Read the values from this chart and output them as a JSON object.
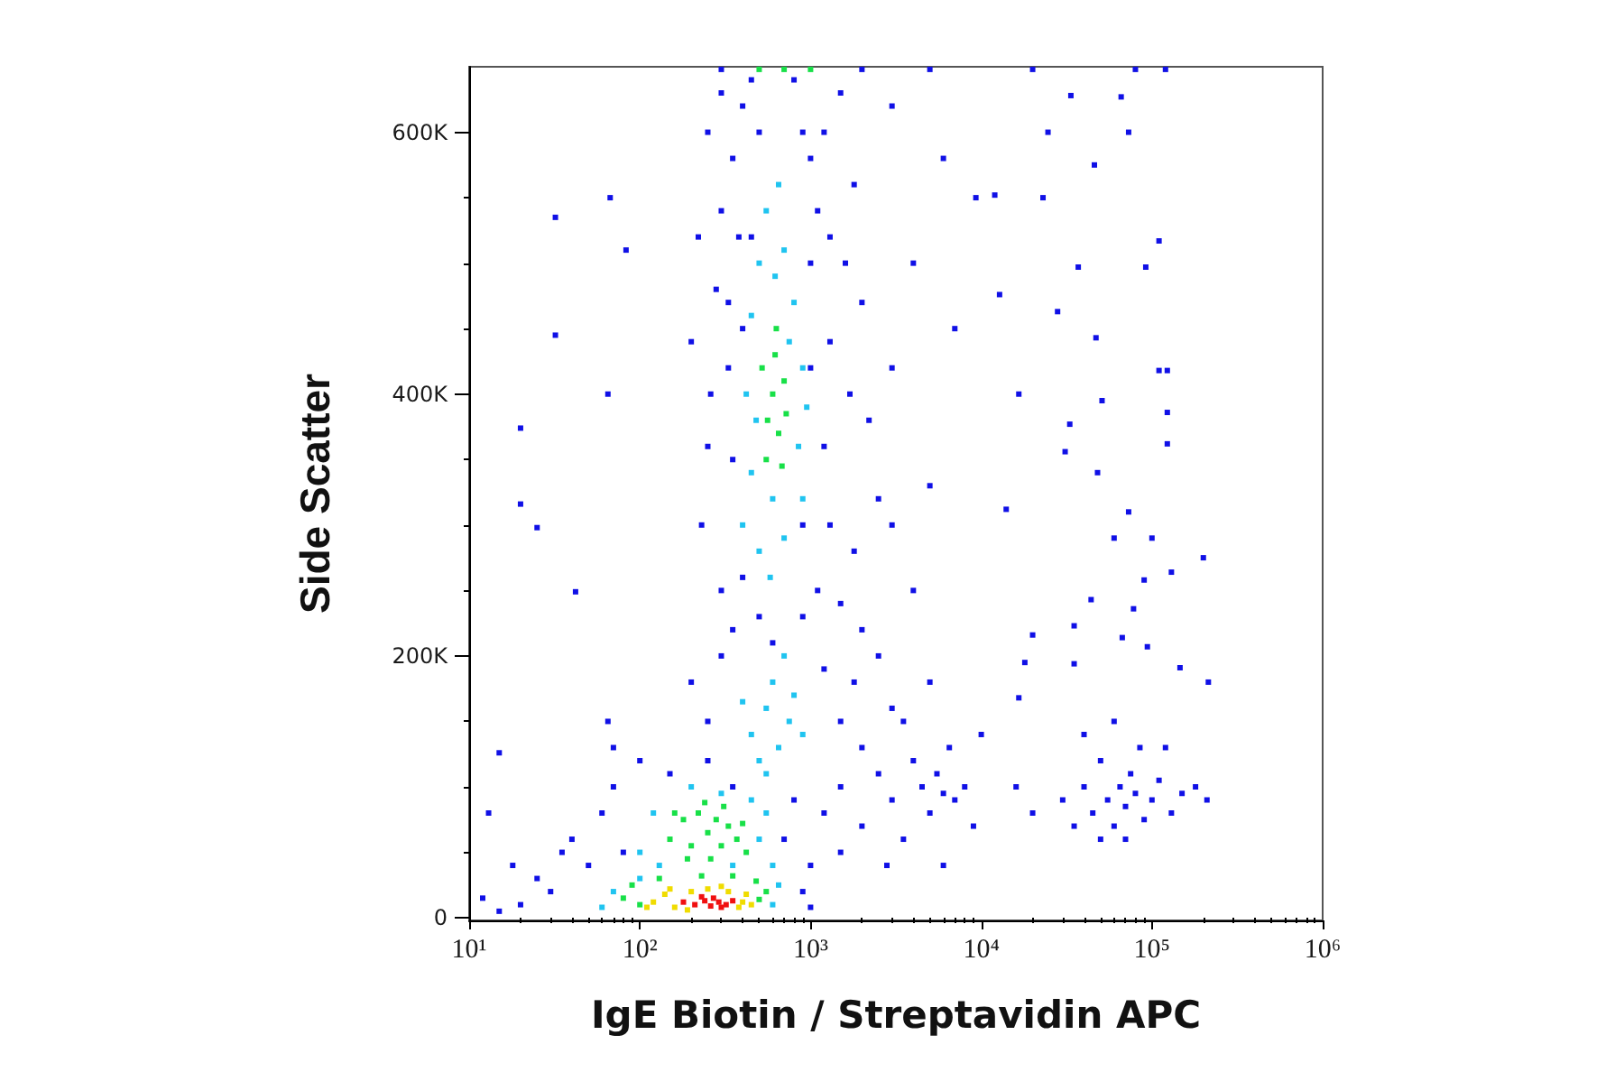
{
  "chart_data": {
    "type": "scatter",
    "xlabel": "IgE Biotin / Streptavidin APC",
    "ylabel": "Side Scatter",
    "log": "x",
    "marker": "square",
    "xlim": [
      10,
      1000000
    ],
    "ylim": [
      -2000,
      650000
    ],
    "xticks": [
      {
        "value": 10,
        "label": "10¹"
      },
      {
        "value": 20,
        "label": null
      },
      {
        "value": 30,
        "label": null
      },
      {
        "value": 40,
        "label": null
      },
      {
        "value": 50,
        "label": null
      },
      {
        "value": 60,
        "label": null
      },
      {
        "value": 70,
        "label": null
      },
      {
        "value": 80,
        "label": null
      },
      {
        "value": 90,
        "label": null
      },
      {
        "value": 100,
        "label": "10²"
      },
      {
        "value": 200,
        "label": null
      },
      {
        "value": 300,
        "label": null
      },
      {
        "value": 400,
        "label": null
      },
      {
        "value": 500,
        "label": null
      },
      {
        "value": 600,
        "label": null
      },
      {
        "value": 700,
        "label": null
      },
      {
        "value": 800,
        "label": null
      },
      {
        "value": 900,
        "label": null
      },
      {
        "value": 1000,
        "label": "10³"
      },
      {
        "value": 2000,
        "label": null
      },
      {
        "value": 3000,
        "label": null
      },
      {
        "value": 4000,
        "label": null
      },
      {
        "value": 5000,
        "label": null
      },
      {
        "value": 6000,
        "label": null
      },
      {
        "value": 7000,
        "label": null
      },
      {
        "value": 8000,
        "label": null
      },
      {
        "value": 9000,
        "label": null
      },
      {
        "value": 10000,
        "label": "10⁴"
      },
      {
        "value": 20000,
        "label": null
      },
      {
        "value": 30000,
        "label": null
      },
      {
        "value": 40000,
        "label": null
      },
      {
        "value": 50000,
        "label": null
      },
      {
        "value": 60000,
        "label": null
      },
      {
        "value": 70000,
        "label": null
      },
      {
        "value": 80000,
        "label": null
      },
      {
        "value": 90000,
        "label": null
      },
      {
        "value": 100000,
        "label": "10⁵"
      },
      {
        "value": 200000,
        "label": null
      },
      {
        "value": 300000,
        "label": null
      },
      {
        "value": 400000,
        "label": null
      },
      {
        "value": 500000,
        "label": null
      },
      {
        "value": 600000,
        "label": null
      },
      {
        "value": 700000,
        "label": null
      },
      {
        "value": 800000,
        "label": null
      },
      {
        "value": 900000,
        "label": null
      },
      {
        "value": 1000000,
        "label": "10⁶"
      }
    ],
    "yticks": [
      0,
      {
        "value": 50000,
        "label": null
      },
      {
        "value": 100000,
        "label": null
      },
      {
        "value": 150000,
        "label": null
      },
      {
        "value": 200000,
        "label": "200K"
      },
      {
        "value": 250000,
        "label": null
      },
      {
        "value": 300000,
        "label": null
      },
      {
        "value": 350000,
        "label": null
      },
      {
        "value": 400000,
        "label": "400K"
      },
      {
        "value": 450000,
        "label": null
      },
      {
        "value": 500000,
        "label": null
      },
      {
        "value": 550000,
        "label": null
      },
      {
        "value": 600000,
        "label": "600K"
      }
    ],
    "series": [
      {
        "color": "#1010e6",
        "x": [
          250,
          300,
          350,
          400,
          1200,
          1500,
          1000,
          1800,
          220,
          280,
          300,
          1300,
          1600,
          2000,
          1100,
          200,
          260,
          250,
          1300,
          1700,
          2200,
          1200,
          3000,
          230,
          300,
          1300,
          1800,
          2500,
          1500,
          350,
          2000,
          330,
          330,
          380,
          900,
          450,
          800,
          1000,
          350,
          400,
          900,
          500,
          1000,
          450,
          1100,
          400,
          900,
          600,
          500,
          200,
          250,
          300,
          250,
          1500,
          2000,
          1200,
          1800,
          3000,
          2500,
          350,
          40,
          50,
          60,
          70,
          80,
          100,
          150,
          30,
          20,
          15,
          12,
          25,
          35,
          700,
          800,
          1000,
          1200,
          900,
          1000,
          1500,
          1500,
          2000,
          18,
          13
        ],
        "values": [
          600000,
          630000,
          580000,
          620000,
          600000,
          630000,
          580000,
          560000,
          520000,
          480000,
          540000,
          520000,
          500000,
          470000,
          540000,
          440000,
          400000,
          360000,
          440000,
          400000,
          380000,
          360000,
          420000,
          300000,
          250000,
          300000,
          280000,
          320000,
          240000,
          220000,
          220000,
          420000,
          470000,
          520000,
          600000,
          640000,
          640000,
          500000,
          350000,
          450000,
          300000,
          600000,
          420000,
          520000,
          250000,
          260000,
          230000,
          210000,
          230000,
          180000,
          150000,
          200000,
          120000,
          150000,
          130000,
          190000,
          180000,
          160000,
          110000,
          100000,
          60000,
          40000,
          80000,
          100000,
          50000,
          120000,
          110000,
          20000,
          10000,
          5000,
          15000,
          30000,
          50000,
          60000,
          90000,
          40000,
          80000,
          20000,
          8000,
          100000,
          50000,
          70000,
          40000,
          80000
        ]
      },
      {
        "color": "#1010e6",
        "x": [
          2500,
          3000,
          3500,
          4000,
          4500,
          5000,
          5500,
          6000,
          6500,
          7000,
          8000,
          3500,
          4000,
          5000,
          2800,
          6000,
          9000,
          16000,
          20000,
          10000,
          3000,
          5000,
          4000,
          6000,
          3000,
          7000,
          30000,
          35000,
          40000,
          45000,
          50000,
          55000,
          60000,
          65000,
          70000,
          75000,
          80000,
          90000,
          100000,
          110000,
          130000,
          150000,
          180000,
          40000,
          60000,
          85000,
          50000,
          120000,
          70000,
          210000,
          14000,
          73000,
          60000,
          100000,
          200000,
          130000,
          90000,
          44000,
          78000,
          35000,
          20000,
          67000,
          94000,
          35000,
          146000,
          214000,
          18000,
          16600,
          33500,
          66000,
          24600,
          73000,
          46000,
          9300,
          12000,
          23000,
          110000,
          37000,
          92000,
          12800,
          28000,
          47000,
          110000,
          123000,
          16600,
          51000,
          123000,
          33000,
          123000,
          31000,
          48000,
          300,
          2000,
          5000,
          20000,
          80000,
          120000,
          32,
          32,
          20,
          20,
          25,
          42,
          15,
          65,
          70,
          67,
          83,
          65
        ],
        "values": [
          200000,
          90000,
          60000,
          120000,
          100000,
          80000,
          110000,
          95000,
          130000,
          90000,
          100000,
          150000,
          250000,
          180000,
          40000,
          40000,
          70000,
          100000,
          80000,
          140000,
          300000,
          330000,
          500000,
          580000,
          620000,
          450000,
          90000,
          70000,
          100000,
          80000,
          120000,
          90000,
          70000,
          100000,
          85000,
          110000,
          95000,
          75000,
          90000,
          105000,
          80000,
          95000,
          100000,
          140000,
          150000,
          130000,
          60000,
          130000,
          60000,
          90000,
          312000,
          310000,
          290000,
          290000,
          275000,
          264000,
          258000,
          243000,
          236000,
          223000,
          216000,
          214000,
          207000,
          194000,
          191000,
          180000,
          195000,
          168000,
          628000,
          627000,
          600000,
          600000,
          575000,
          550000,
          552000,
          550000,
          517000,
          497000,
          497000,
          476000,
          463000,
          443000,
          418000,
          418000,
          400000,
          395000,
          386000,
          377000,
          362000,
          356000,
          340000,
          648000,
          648000,
          648000,
          648000,
          648000,
          648000,
          535000,
          445000,
          374000,
          316000,
          298000,
          249000,
          126000,
          150000,
          130000,
          550000,
          510000,
          400000
        ]
      },
      {
        "color": "#20c4f0",
        "x": [
          400,
          500,
          700,
          900,
          450,
          850,
          420,
          900,
          450,
          800,
          500,
          700,
          550,
          650,
          480,
          950,
          600,
          750,
          620,
          580,
          450,
          550,
          650,
          750,
          600,
          800,
          500,
          700,
          900,
          550,
          400,
          100,
          120,
          130,
          500,
          550,
          450,
          200,
          300,
          350,
          100,
          600,
          70,
          60,
          600,
          650
        ],
        "values": [
          300000,
          280000,
          290000,
          320000,
          340000,
          360000,
          400000,
          420000,
          460000,
          470000,
          500000,
          510000,
          540000,
          560000,
          380000,
          390000,
          320000,
          440000,
          490000,
          260000,
          140000,
          160000,
          130000,
          150000,
          180000,
          170000,
          120000,
          200000,
          140000,
          110000,
          165000,
          50000,
          80000,
          40000,
          60000,
          80000,
          90000,
          100000,
          95000,
          40000,
          30000,
          40000,
          20000,
          8000,
          10000,
          25000
        ]
      },
      {
        "color": "#18e048",
        "x": [
          150,
          180,
          200,
          220,
          250,
          280,
          300,
          330,
          370,
          400,
          260,
          190,
          420,
          160,
          240,
          310,
          80,
          90,
          100,
          500,
          550,
          480,
          130,
          350,
          230,
          550,
          650,
          600,
          700,
          620,
          560,
          680,
          630,
          520,
          720,
          500,
          700,
          1000
        ],
        "values": [
          60000,
          75000,
          55000,
          80000,
          65000,
          75000,
          55000,
          70000,
          60000,
          72000,
          45000,
          45000,
          50000,
          80000,
          88000,
          85000,
          15000,
          25000,
          10000,
          14000,
          20000,
          28000,
          30000,
          32000,
          32000,
          350000,
          370000,
          400000,
          410000,
          430000,
          380000,
          345000,
          450000,
          420000,
          385000,
          648000,
          648000,
          648000
        ]
      },
      {
        "color": "#f0dc00",
        "x": [
          120,
          140,
          160,
          200,
          250,
          330,
          400,
          420,
          150,
          190,
          380,
          450,
          300,
          110
        ],
        "values": [
          12000,
          18000,
          8000,
          20000,
          22000,
          20000,
          12000,
          18000,
          22000,
          6000,
          8000,
          10000,
          24000,
          8000
        ]
      },
      {
        "color": "#f01010",
        "x": [
          180,
          210,
          240,
          260,
          290,
          320,
          350,
          230,
          270,
          300
        ],
        "values": [
          12000,
          10000,
          13000,
          9000,
          12000,
          10000,
          13000,
          16000,
          15000,
          8000
        ]
      }
    ]
  }
}
